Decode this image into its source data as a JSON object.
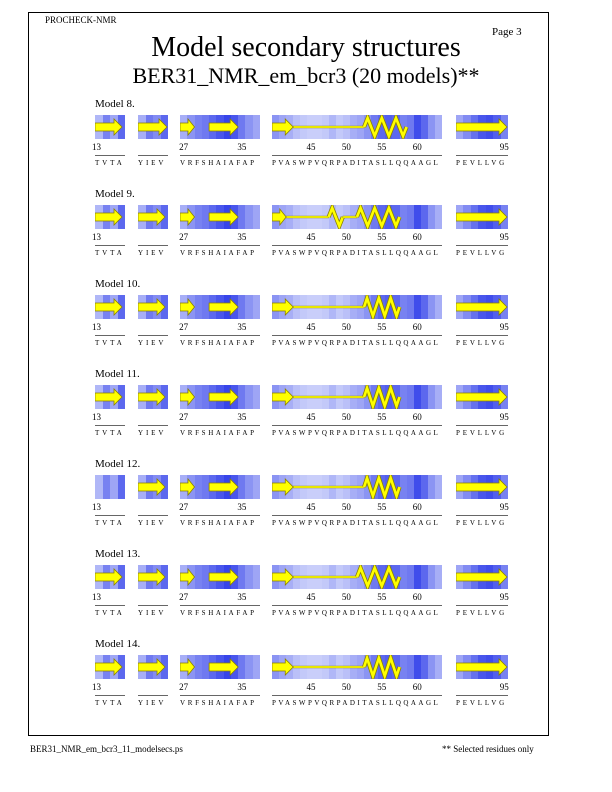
{
  "header": {
    "program": "PROCHECK-NMR",
    "page": "Page  3"
  },
  "title": "Model secondary structures",
  "subtitle": "BER31_NMR_em_bcr3 (20 models)**",
  "footer": {
    "filename": "BER31_NMR_em_bcr3_11_modelsecs.ps",
    "note": "** Selected residues only"
  },
  "colors": {
    "strand": "#ffff00",
    "helix": "#ffff00",
    "outline": "#8a7f00",
    "shade_light": "#dfe3fc",
    "shade_dark": "#2433e8"
  },
  "segments": [
    {
      "sequence": "TVTA",
      "labels": [
        {
          "text": "13",
          "pos": 0
        }
      ]
    },
    {
      "sequence": "YIEV",
      "labels": []
    },
    {
      "sequence": "VRFSHAIAFAP",
      "labels": [
        {
          "text": "27",
          "pos": 0
        },
        {
          "text": "35",
          "pos": 8
        }
      ]
    },
    {
      "sequence": "PVASWPVQRPADITASLLQQAAGL",
      "labels": [
        {
          "text": "45",
          "pos": 5
        },
        {
          "text": "50",
          "pos": 10
        },
        {
          "text": "55",
          "pos": 15
        },
        {
          "text": "60",
          "pos": 20
        }
      ]
    },
    {
      "sequence": "PEVLLVG",
      "labels": [
        {
          "text": "95",
          "pos": 6
        }
      ]
    }
  ],
  "models": [
    {
      "label": "Model  8.",
      "elements": [
        [
          {
            "type": "strand",
            "from": 0,
            "to": 3.6
          }
        ],
        [
          {
            "type": "strand",
            "from": 0,
            "to": 4
          }
        ],
        [
          {
            "type": "strand",
            "from": 0,
            "to": 2
          },
          {
            "type": "strand",
            "from": 4,
            "to": 8
          }
        ],
        [
          {
            "type": "strand",
            "from": 0,
            "to": 3
          },
          {
            "type": "coil",
            "from": 3,
            "to": 13
          },
          {
            "type": "helix",
            "from": 13,
            "to": 19
          }
        ],
        [
          {
            "type": "strand",
            "from": 0,
            "to": 7
          }
        ]
      ]
    },
    {
      "label": "Model  9.",
      "elements": [
        [
          {
            "type": "strand",
            "from": 0,
            "to": 3.6
          }
        ],
        [
          {
            "type": "strand",
            "from": 0,
            "to": 3.6
          }
        ],
        [
          {
            "type": "strand",
            "from": 0,
            "to": 2
          },
          {
            "type": "strand",
            "from": 4,
            "to": 8
          }
        ],
        [
          {
            "type": "strand",
            "from": 0,
            "to": 2
          },
          {
            "type": "coil",
            "from": 2,
            "to": 8
          },
          {
            "type": "helix",
            "from": 8,
            "to": 10
          },
          {
            "type": "coil",
            "from": 10,
            "to": 12
          },
          {
            "type": "helix",
            "from": 12,
            "to": 18
          }
        ],
        [
          {
            "type": "strand",
            "from": 0,
            "to": 7
          }
        ]
      ]
    },
    {
      "label": "Model 10.",
      "elements": [
        [
          {
            "type": "strand",
            "from": 0,
            "to": 3.6
          }
        ],
        [
          {
            "type": "strand",
            "from": 0,
            "to": 3.6
          }
        ],
        [
          {
            "type": "strand",
            "from": 0,
            "to": 2
          },
          {
            "type": "strand",
            "from": 4,
            "to": 8
          }
        ],
        [
          {
            "type": "strand",
            "from": 0,
            "to": 3
          },
          {
            "type": "coil",
            "from": 3,
            "to": 13
          },
          {
            "type": "helix",
            "from": 13,
            "to": 18
          }
        ],
        [
          {
            "type": "strand",
            "from": 0,
            "to": 7
          }
        ]
      ]
    },
    {
      "label": "Model 11.",
      "elements": [
        [
          {
            "type": "strand",
            "from": 0,
            "to": 3.6
          }
        ],
        [
          {
            "type": "strand",
            "from": 0,
            "to": 3.6
          }
        ],
        [
          {
            "type": "strand",
            "from": 0,
            "to": 2
          },
          {
            "type": "strand",
            "from": 4,
            "to": 8
          }
        ],
        [
          {
            "type": "strand",
            "from": 0,
            "to": 3
          },
          {
            "type": "coil",
            "from": 3,
            "to": 13
          },
          {
            "type": "helix",
            "from": 13,
            "to": 18
          }
        ],
        [
          {
            "type": "strand",
            "from": 0,
            "to": 7
          }
        ]
      ]
    },
    {
      "label": "Model 12.",
      "elements": [
        [],
        [
          {
            "type": "strand",
            "from": 0,
            "to": 3.6
          }
        ],
        [
          {
            "type": "strand",
            "from": 0,
            "to": 2
          },
          {
            "type": "strand",
            "from": 4,
            "to": 8
          }
        ],
        [
          {
            "type": "strand",
            "from": 0,
            "to": 3
          },
          {
            "type": "coil",
            "from": 3,
            "to": 13
          },
          {
            "type": "helix",
            "from": 13,
            "to": 18
          }
        ],
        [
          {
            "type": "strand",
            "from": 0,
            "to": 7
          }
        ]
      ]
    },
    {
      "label": "Model 13.",
      "elements": [
        [
          {
            "type": "strand",
            "from": 0,
            "to": 3.6
          }
        ],
        [
          {
            "type": "strand",
            "from": 0,
            "to": 3.6
          }
        ],
        [
          {
            "type": "strand",
            "from": 0,
            "to": 2
          },
          {
            "type": "strand",
            "from": 4,
            "to": 8
          }
        ],
        [
          {
            "type": "strand",
            "from": 0,
            "to": 3
          },
          {
            "type": "coil",
            "from": 3,
            "to": 12
          },
          {
            "type": "helix",
            "from": 12,
            "to": 18
          }
        ],
        [
          {
            "type": "strand",
            "from": 0,
            "to": 7
          }
        ]
      ]
    },
    {
      "label": "Model 14.",
      "elements": [
        [
          {
            "type": "strand",
            "from": 0,
            "to": 3.6
          }
        ],
        [
          {
            "type": "strand",
            "from": 0,
            "to": 3.6
          }
        ],
        [
          {
            "type": "strand",
            "from": 0,
            "to": 2
          },
          {
            "type": "strand",
            "from": 4,
            "to": 8
          }
        ],
        [
          {
            "type": "strand",
            "from": 0,
            "to": 3
          },
          {
            "type": "coil",
            "from": 3,
            "to": 13
          },
          {
            "type": "helix",
            "from": 13,
            "to": 18
          }
        ],
        [
          {
            "type": "strand",
            "from": 0,
            "to": 7
          }
        ]
      ]
    }
  ],
  "shading": [
    [
      0.25,
      0.55,
      0.35,
      0.7
    ],
    [
      0.3,
      0.6,
      0.5,
      0.7
    ],
    [
      0.3,
      0.45,
      0.55,
      0.6,
      0.7,
      0.8,
      0.9,
      0.8,
      0.6,
      0.45,
      0.35
    ],
    [
      0.45,
      0.35,
      0.3,
      0.2,
      0.15,
      0.12,
      0.12,
      0.15,
      0.25,
      0.15,
      0.2,
      0.3,
      0.35,
      0.45,
      0.6,
      0.7,
      0.75,
      0.7,
      0.55,
      0.6,
      0.85,
      0.7,
      0.45,
      0.3
    ],
    [
      0.35,
      0.5,
      0.65,
      0.8,
      0.85,
      0.75,
      0.55
    ]
  ]
}
